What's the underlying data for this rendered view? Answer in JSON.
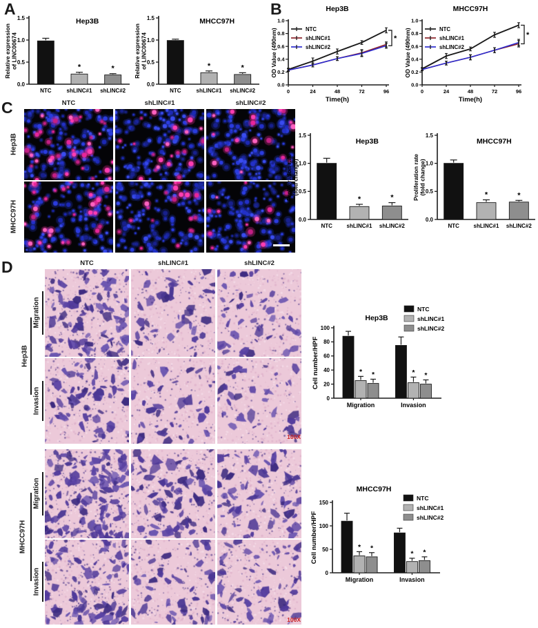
{
  "panels": {
    "a": "A",
    "b": "B",
    "c": "C",
    "d": "D"
  },
  "groups": [
    "NTC",
    "shLINC#1",
    "shLINC#2"
  ],
  "colors": {
    "ntc": "#111111",
    "sh1": "#b2b2b2",
    "sh2": "#8e8e8e",
    "line_ntc": "#1a1a1a",
    "line_sh1": "#8b2027",
    "line_sh2": "#2b2bd0"
  },
  "panel_c": {
    "columns": [
      "NTC",
      "shLINC#1",
      "shLINC#2"
    ],
    "rows": [
      "Hep3B",
      "MHCC97H"
    ]
  },
  "panel_d": {
    "columns": [
      "NTC",
      "shLINC#1",
      "shLINC#2"
    ],
    "row_groups": [
      {
        "cell_line": "Hep3B",
        "assays": [
          "Migration",
          "Invasion"
        ]
      },
      {
        "cell_line": "MHCC97H",
        "assays": [
          "Migration",
          "Invasion"
        ]
      }
    ],
    "magnification": "100X"
  },
  "chart_data": [
    {
      "id": "a-hep3b",
      "type": "bar",
      "title": "Hep3B",
      "ylabel": "Relative expression\nof LINC00674",
      "ylim": [
        0,
        1.5
      ],
      "yticks": [
        0,
        0.5,
        1,
        1.5
      ],
      "ytick_labels": [
        "0.0",
        "0.5",
        "1.0",
        "1.5"
      ],
      "categories": [
        "NTC",
        "shLINC#1",
        "shLINC#2"
      ],
      "values": [
        0.98,
        0.23,
        0.21
      ],
      "errors": [
        0.06,
        0.04,
        0.03
      ],
      "sig": [
        "",
        "*",
        "*"
      ],
      "bar_colors": [
        "#111111",
        "#b2b2b2",
        "#8e8e8e"
      ]
    },
    {
      "id": "a-mhcc97h",
      "type": "bar",
      "title": "MHCC97H",
      "ylabel": "Relative expression\nof LINC00674",
      "ylim": [
        0,
        1.5
      ],
      "yticks": [
        0,
        0.5,
        1,
        1.5
      ],
      "ytick_labels": [
        "0.0",
        "0.5",
        "1.0",
        "1.5"
      ],
      "categories": [
        "NTC",
        "shLINC#1",
        "shLINC#2"
      ],
      "values": [
        0.99,
        0.26,
        0.22
      ],
      "errors": [
        0.03,
        0.04,
        0.04
      ],
      "sig": [
        "",
        "*",
        "*"
      ],
      "bar_colors": [
        "#111111",
        "#b2b2b2",
        "#8e8e8e"
      ]
    },
    {
      "id": "b-hep3b",
      "type": "line",
      "title": "Hep3B",
      "xlabel": "Time(h)",
      "ylabel": "OD Value (490nm)",
      "xlim": [
        0,
        96
      ],
      "xticks": [
        0,
        24,
        48,
        72,
        96
      ],
      "xtick_labels": [
        "0",
        "24",
        "48",
        "72",
        "96"
      ],
      "ylim": [
        0,
        1
      ],
      "yticks": [
        0,
        0.2,
        0.4,
        0.6,
        0.8,
        1
      ],
      "ytick_labels": [
        "0.0",
        "0.2",
        "0.4",
        "0.6",
        "0.8",
        "1.0"
      ],
      "bracket_sig": "*",
      "series": [
        {
          "name": "NTC",
          "color": "#1a1a1a",
          "values": [
            0.24,
            0.37,
            0.52,
            0.66,
            0.85
          ],
          "errors": [
            0.02,
            0.05,
            0.04,
            0.03,
            0.04
          ]
        },
        {
          "name": "shLINC#1",
          "color": "#8b2027",
          "values": [
            0.23,
            0.31,
            0.41,
            0.5,
            0.63
          ],
          "errors": [
            0.02,
            0.03,
            0.03,
            0.05,
            0.04
          ]
        },
        {
          "name": "shLINC#2",
          "color": "#2b2bd0",
          "values": [
            0.23,
            0.31,
            0.41,
            0.49,
            0.61
          ],
          "errors": [
            0.02,
            0.03,
            0.03,
            0.05,
            0.04
          ]
        }
      ]
    },
    {
      "id": "b-mhcc97h",
      "type": "line",
      "title": "MHCC97H",
      "xlabel": "Time(h)",
      "ylabel": "OD Value (490nm)",
      "xlim": [
        0,
        96
      ],
      "xticks": [
        0,
        24,
        48,
        72,
        96
      ],
      "xtick_labels": [
        "0",
        "24",
        "48",
        "72",
        "96"
      ],
      "ylim": [
        0,
        1
      ],
      "yticks": [
        0,
        0.2,
        0.4,
        0.6,
        0.8,
        1
      ],
      "ytick_labels": [
        "0.0",
        "0.2",
        "0.4",
        "0.6",
        "0.8",
        "1.0"
      ],
      "bracket_sig": "*",
      "series": [
        {
          "name": "NTC",
          "color": "#1a1a1a",
          "values": [
            0.25,
            0.45,
            0.56,
            0.78,
            0.93
          ],
          "errors": [
            0.02,
            0.04,
            0.03,
            0.04,
            0.04
          ]
        },
        {
          "name": "shLINC#1",
          "color": "#8b2027",
          "values": [
            0.24,
            0.34,
            0.43,
            0.54,
            0.64
          ],
          "errors": [
            0.02,
            0.03,
            0.04,
            0.04,
            0.05
          ]
        },
        {
          "name": "shLINC#2",
          "color": "#2b2bd0",
          "values": [
            0.24,
            0.34,
            0.43,
            0.54,
            0.66
          ],
          "errors": [
            0.02,
            0.03,
            0.04,
            0.04,
            0.05
          ]
        }
      ]
    },
    {
      "id": "c-hep3b",
      "type": "bar",
      "title": "Hep3B",
      "ylabel": "Proliferation rate\n(fold change)",
      "ylim": [
        0,
        1.5
      ],
      "yticks": [
        0,
        0.5,
        1,
        1.5
      ],
      "ytick_labels": [
        "0.0",
        "0.5",
        "1.0",
        "1.5"
      ],
      "categories": [
        "NTC",
        "shLINC#1",
        "shLINC#2"
      ],
      "values": [
        1.0,
        0.23,
        0.24
      ],
      "errors": [
        0.09,
        0.04,
        0.06
      ],
      "sig": [
        "",
        "*",
        "*"
      ],
      "bar_colors": [
        "#111111",
        "#b2b2b2",
        "#8e8e8e"
      ]
    },
    {
      "id": "c-mhcc97h",
      "type": "bar",
      "title": "MHCC97H",
      "ylabel": "Proliferation rate\n(fold change)",
      "ylim": [
        0,
        1.5
      ],
      "yticks": [
        0,
        0.5,
        1,
        1.5
      ],
      "ytick_labels": [
        "0.0",
        "0.5",
        "1.0",
        "1.5"
      ],
      "categories": [
        "NTC",
        "shLINC#1",
        "shLINC#2"
      ],
      "values": [
        1.0,
        0.3,
        0.31
      ],
      "errors": [
        0.06,
        0.05,
        0.03
      ],
      "sig": [
        "",
        "*",
        "*"
      ],
      "bar_colors": [
        "#111111",
        "#b2b2b2",
        "#8e8e8e"
      ]
    },
    {
      "id": "d-hep3b",
      "type": "groupedBar",
      "title": "Hep3B",
      "ylabel": "Cell number/HPF",
      "ylim": [
        0,
        100
      ],
      "yticks": [
        0,
        20,
        40,
        60,
        80,
        100
      ],
      "ytick_labels": [
        "0",
        "20",
        "40",
        "60",
        "80",
        "100"
      ],
      "categories": [
        "Migration",
        "Invasion"
      ],
      "series": [
        {
          "name": "NTC",
          "color": "#111111",
          "values": [
            88,
            75
          ],
          "errors": [
            7,
            12
          ],
          "sig": [
            "",
            ""
          ]
        },
        {
          "name": "shLINC#1",
          "color": "#b2b2b2",
          "values": [
            25,
            22
          ],
          "errors": [
            6,
            8
          ],
          "sig": [
            "*",
            "*"
          ]
        },
        {
          "name": "shLINC#2",
          "color": "#8e8e8e",
          "values": [
            21,
            20
          ],
          "errors": [
            6,
            6
          ],
          "sig": [
            "*",
            "*"
          ]
        }
      ]
    },
    {
      "id": "d-mhcc97h",
      "type": "groupedBar",
      "title": "MHCC97H",
      "ylabel": "Cell number/HPF",
      "ylim": [
        0,
        150
      ],
      "yticks": [
        0,
        50,
        100,
        150
      ],
      "ytick_labels": [
        "0",
        "50",
        "100",
        "150"
      ],
      "categories": [
        "Migration",
        "Invasion"
      ],
      "series": [
        {
          "name": "NTC",
          "color": "#111111",
          "values": [
            110,
            85
          ],
          "errors": [
            17,
            10
          ],
          "sig": [
            "",
            ""
          ]
        },
        {
          "name": "shLINC#1",
          "color": "#b2b2b2",
          "values": [
            36,
            24
          ],
          "errors": [
            9,
            7
          ],
          "sig": [
            "*",
            "*"
          ]
        },
        {
          "name": "shLINC#2",
          "color": "#8e8e8e",
          "values": [
            34,
            26
          ],
          "errors": [
            9,
            8
          ],
          "sig": [
            "*",
            "*"
          ]
        }
      ]
    }
  ]
}
